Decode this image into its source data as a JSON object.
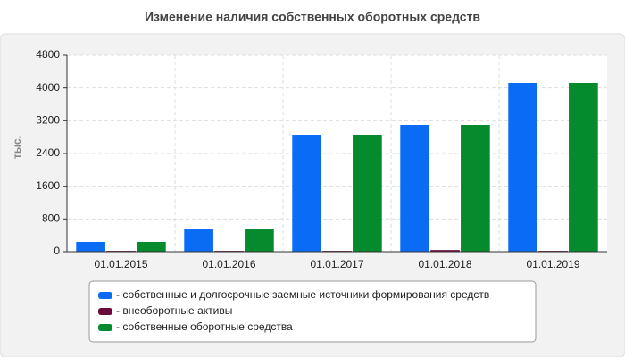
{
  "chart_data": {
    "type": "bar",
    "title": "Изменение наличия собственных оборотных средств",
    "y_label": "тыс.",
    "categories": [
      "01.01.2015",
      "01.01.2016",
      "01.01.2017",
      "01.01.2018",
      "01.01.2019"
    ],
    "series": [
      {
        "name": "- собственные и долгосрочные заемные источники формирования средств",
        "color": "#0a6cf5",
        "values": [
          240,
          545,
          2858,
          3098,
          4124
        ]
      },
      {
        "name": "- внеоборотные активы",
        "color": "#6b0a3a",
        "values": [
          20,
          20,
          20,
          40,
          20
        ]
      },
      {
        "name": "- собственные оборотные средства",
        "color": "#068a2e",
        "values": [
          240,
          545,
          2858,
          3098,
          4124
        ]
      }
    ],
    "ylim": [
      0,
      4800
    ],
    "yticks": [
      0,
      800,
      1600,
      2400,
      3200,
      4000,
      4800
    ],
    "grid": true
  }
}
